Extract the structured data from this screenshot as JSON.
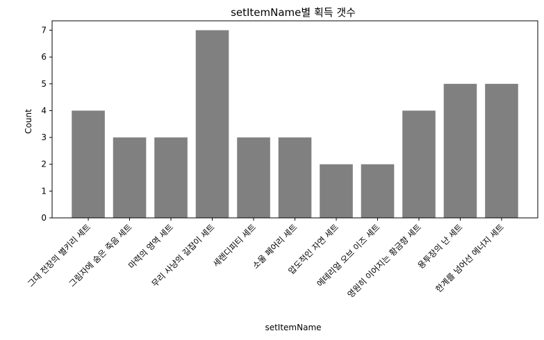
{
  "chart_data": {
    "type": "bar",
    "title": "setItemName별 획득 갯수",
    "xlabel": "setItemName",
    "ylabel": "Count",
    "categories": [
      "그대 전장의 별키리 세트",
      "그림자에 숨은 죽음 세트",
      "마력의 영역 세트",
      "무리 사냥의 길잡이 세트",
      "세렌디피티 세트",
      "소울 페어리 세트",
      "압도적인 자연 세트",
      "에테리얼 오브 이즈 세트",
      "영원히 이어지는 황금향 세트",
      "용투장의 난 세트",
      "한계를 넘어선 에너지 세트"
    ],
    "values": [
      4,
      3,
      3,
      7,
      3,
      3,
      2,
      2,
      4,
      5,
      5
    ],
    "ylim": [
      0,
      7.35
    ],
    "yticks": [
      0,
      1,
      2,
      3,
      4,
      5,
      6,
      7
    ],
    "bar_color": "#808080",
    "grid": false,
    "legend": "none"
  }
}
